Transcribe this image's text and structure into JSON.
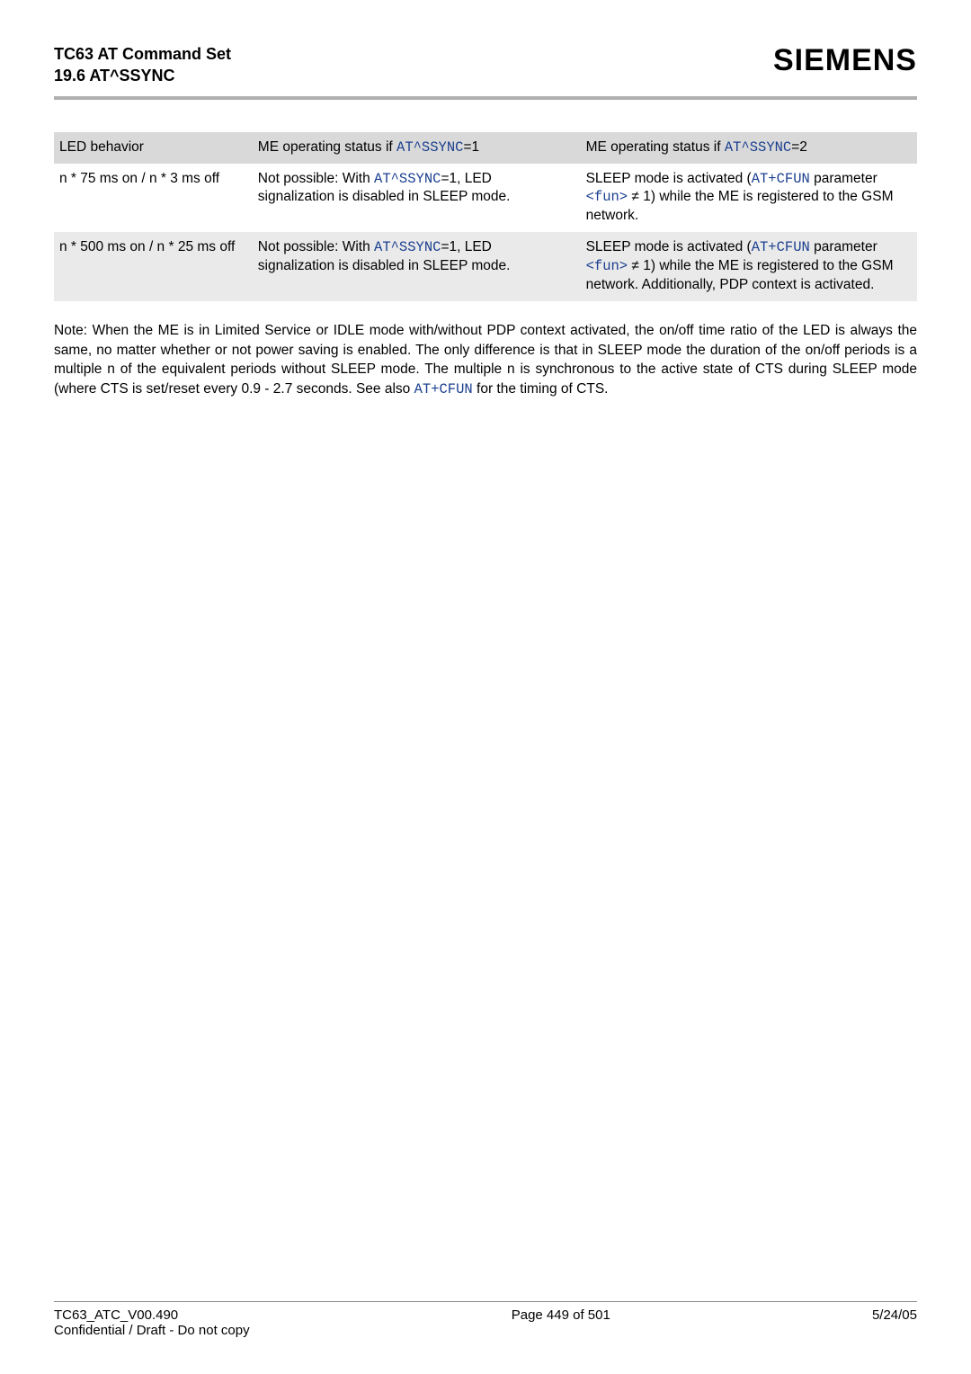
{
  "header": {
    "title_line1": "TC63 AT Command Set",
    "title_line2": "19.6 AT^SSYNC",
    "brand": "SIEMENS"
  },
  "table": {
    "columns": [
      "LED behavior",
      "ME operating status if ",
      "ME operating status if "
    ],
    "col2_cmd": "AT^SSYNC",
    "col2_suffix": "=1",
    "col3_cmd": "AT^SSYNC",
    "col3_suffix": "=2",
    "rows": [
      {
        "c1": "n * 75 ms on / n * 3 ms off",
        "c2_pre": "Not possible: With ",
        "c2_cmd": "AT^SSYNC",
        "c2_post": "=1, LED signalization is disabled in SLEEP mode.",
        "c3_pre": "SLEEP mode is activated (",
        "c3_cmd1": "AT+CFUN",
        "c3_mid": " parameter ",
        "c3_cmd2": "<fun>",
        "c3_post": " ≠ 1) while the ME is registered to the GSM network."
      },
      {
        "c1": "n * 500 ms on / n * 25 ms off",
        "c2_pre": "Not possible: With ",
        "c2_cmd": "AT^SSYNC",
        "c2_post": "=1, LED signalization is disabled in SLEEP mode.",
        "c3_pre": "SLEEP mode is activated (",
        "c3_cmd1": "AT+CFUN",
        "c3_mid": " parameter ",
        "c3_cmd2": "<fun>",
        "c3_post": " ≠ 1) while the ME is registered to the GSM network. Additionally, PDP context is activated."
      }
    ]
  },
  "note": {
    "pre": "Note: When the ME is in Limited Service or IDLE mode with/without PDP context activated, the on/off time ratio of the LED is always the same, no matter whether or not power saving is enabled. The only difference is that in SLEEP mode the duration of the on/off periods is a multiple n of the equivalent periods without SLEEP mode. The multiple n is synchronous to the active state of CTS during SLEEP mode (where CTS is set/reset every 0.9 - 2.7 seconds. See also ",
    "cmd": "AT+CFUN",
    "post": " for the timing of CTS."
  },
  "footer": {
    "left_line1": "TC63_ATC_V00.490",
    "left_line2": "Confidential / Draft - Do not copy",
    "center": "Page 449 of 501",
    "right": "5/24/05"
  }
}
